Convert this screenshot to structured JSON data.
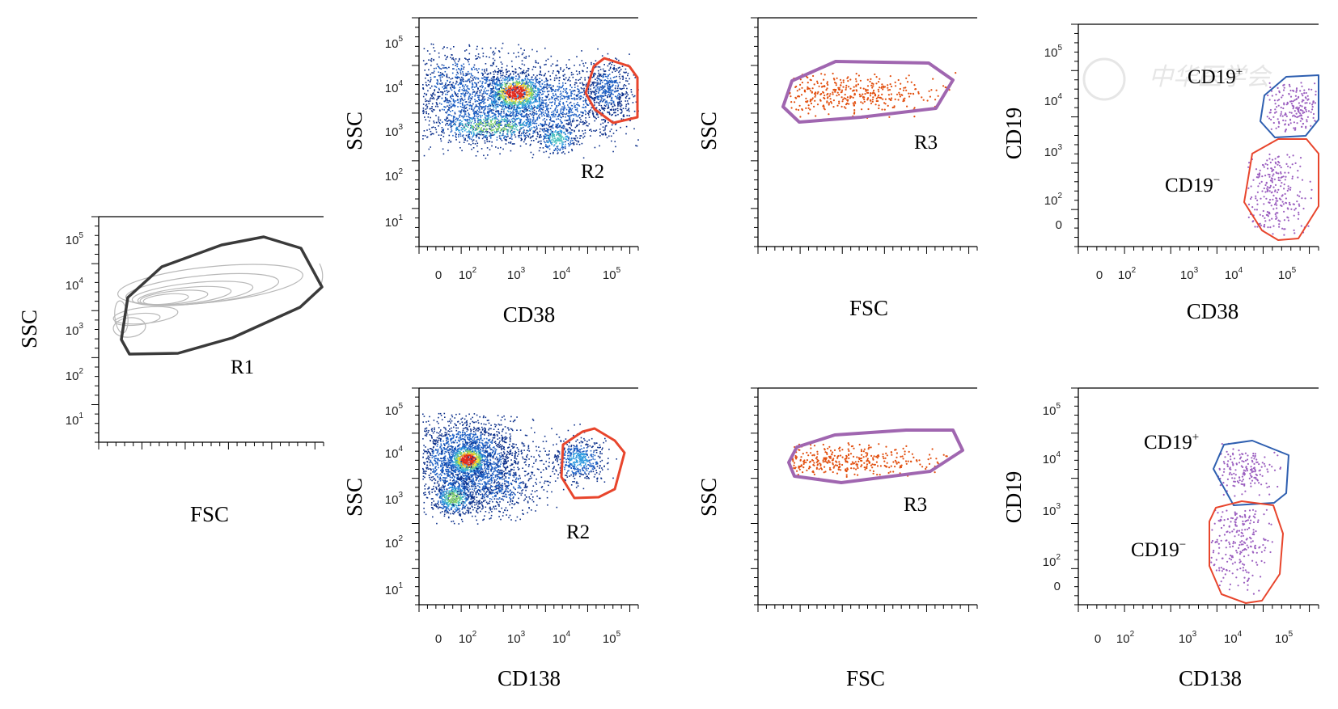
{
  "colors": {
    "gate_R1": "#3a3a3a",
    "gate_R2": "#e8452c",
    "gate_R3": "#a066b0",
    "gate_CD19_pos": "#2e5fb0",
    "gate_CD19_neg": "#e8452c",
    "events_R3": "#e25010",
    "events_CD19": "#9b5fc0",
    "density": [
      "#0b2f8a",
      "#1d5fc4",
      "#2f9adf",
      "#49c2bf",
      "#7fce6a",
      "#e9e53a",
      "#f39a24",
      "#e42a1b"
    ],
    "contour": "#b8b8b8"
  },
  "watermark": "中华医学会",
  "chart_data": [
    {
      "id": "p1",
      "type": "scatter",
      "style": "contour",
      "xlabel": "FSC",
      "ylabel": "SSC",
      "x_scale": "linear",
      "y_scale": "log",
      "y_ticks": [
        "10^1",
        "10^2",
        "10^3",
        "10^4",
        "10^5"
      ],
      "x_ticks": [],
      "gates": [
        {
          "name": "R1",
          "color": "gate_R1"
        }
      ]
    },
    {
      "id": "p2",
      "type": "scatter",
      "style": "density",
      "xlabel": "CD38",
      "ylabel": "SSC",
      "x_scale": "log",
      "y_scale": "log",
      "x_ticks": [
        "0",
        "10^2",
        "10^3",
        "10^4",
        "10^5"
      ],
      "y_ticks": [
        "10^1",
        "10^2",
        "10^3",
        "10^4",
        "10^5"
      ],
      "gates": [
        {
          "name": "R2",
          "color": "gate_R2"
        }
      ]
    },
    {
      "id": "p3",
      "type": "scatter",
      "style": "dots",
      "xlabel": "FSC",
      "ylabel": "SSC",
      "x_scale": "linear",
      "y_scale": "log",
      "x_ticks": [],
      "y_ticks": [],
      "gates": [
        {
          "name": "R3",
          "color": "gate_R3"
        }
      ]
    },
    {
      "id": "p4",
      "type": "scatter",
      "style": "dots",
      "xlabel": "CD38",
      "ylabel": "CD19",
      "x_scale": "log",
      "y_scale": "log",
      "x_ticks": [
        "0",
        "10^2",
        "10^3",
        "10^4",
        "10^5"
      ],
      "y_ticks": [
        "0",
        "10^2",
        "10^3",
        "10^4",
        "10^5"
      ],
      "gates": [
        {
          "name": "CD19+",
          "color": "gate_CD19_pos"
        },
        {
          "name": "CD19−",
          "color": "gate_CD19_neg"
        }
      ]
    },
    {
      "id": "p5",
      "type": "scatter",
      "style": "density",
      "xlabel": "CD138",
      "ylabel": "SSC",
      "x_scale": "log",
      "y_scale": "log",
      "x_ticks": [
        "0",
        "10^2",
        "10^3",
        "10^4",
        "10^5"
      ],
      "y_ticks": [
        "10^1",
        "10^2",
        "10^3",
        "10^4",
        "10^5"
      ],
      "gates": [
        {
          "name": "R2",
          "color": "gate_R2"
        }
      ]
    },
    {
      "id": "p6",
      "type": "scatter",
      "style": "dots",
      "xlabel": "FSC",
      "ylabel": "SSC",
      "x_scale": "linear",
      "y_scale": "log",
      "x_ticks": [],
      "y_ticks": [],
      "gates": [
        {
          "name": "R3",
          "color": "gate_R3"
        }
      ]
    },
    {
      "id": "p7",
      "type": "scatter",
      "style": "dots",
      "xlabel": "CD138",
      "ylabel": "CD19",
      "x_scale": "log",
      "y_scale": "log",
      "x_ticks": [
        "0",
        "10^2",
        "10^3",
        "10^4",
        "10^5"
      ],
      "y_ticks": [
        "0",
        "10^2",
        "10^3",
        "10^4",
        "10^5"
      ],
      "gates": [
        {
          "name": "CD19+",
          "color": "gate_CD19_pos"
        },
        {
          "name": "CD19−",
          "color": "gate_CD19_neg"
        }
      ]
    }
  ]
}
